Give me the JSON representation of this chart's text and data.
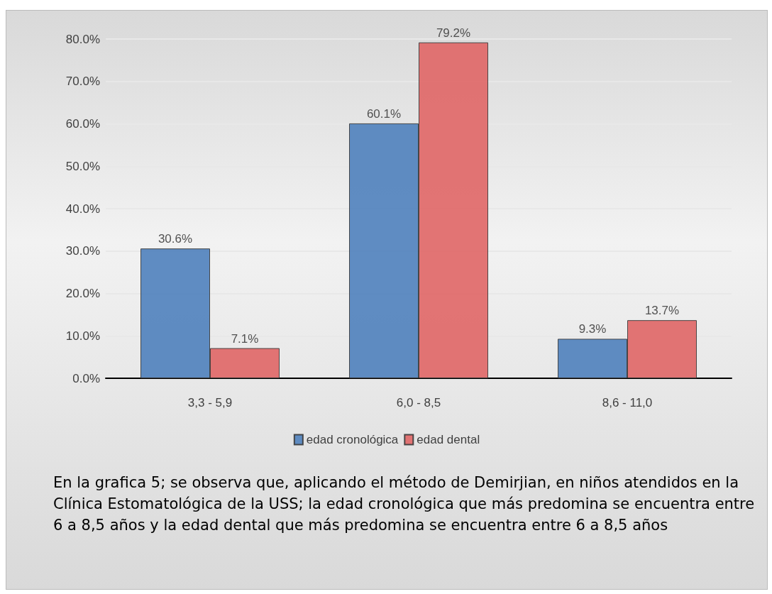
{
  "chart_data": {
    "type": "bar",
    "categories": [
      "3,3 - 5,9",
      "6,0 - 8,5",
      "8,6 - 11,0"
    ],
    "series": [
      {
        "name": "edad cronológica",
        "color": "#4f81bd",
        "values": [
          30.6,
          60.1,
          9.3
        ],
        "value_labels": [
          "30.6%",
          "60.1%",
          "9.3%"
        ]
      },
      {
        "name": "edad dental",
        "color": "#e06666",
        "values": [
          7.1,
          79.2,
          13.7
        ],
        "value_labels": [
          "7.1%",
          "79.2%",
          "13.7%"
        ]
      }
    ],
    "ylim": [
      0,
      80
    ],
    "yticks": [
      {
        "value": 0,
        "label": "0.0%"
      },
      {
        "value": 10,
        "label": "10.0%"
      },
      {
        "value": 20,
        "label": "20.0%"
      },
      {
        "value": 30,
        "label": "30.0%"
      },
      {
        "value": 40,
        "label": "40.0%"
      },
      {
        "value": 50,
        "label": "50.0%"
      },
      {
        "value": 60,
        "label": "60.0%"
      },
      {
        "value": 70,
        "label": "70.0%"
      },
      {
        "value": 80,
        "label": "80.0%"
      }
    ],
    "grid": "y",
    "legend": "bottom",
    "annotations": [
      "En la grafica 5; se observa que, aplicando el método de Demirjian, en niños atendidos en la Clínica Estomatológica de la USS; la edad cronológica que más predomina se encuentra entre 6 a 8,5 años y la edad dental que más predomina se encuentra entre 6 a 8,5 años"
    ]
  }
}
